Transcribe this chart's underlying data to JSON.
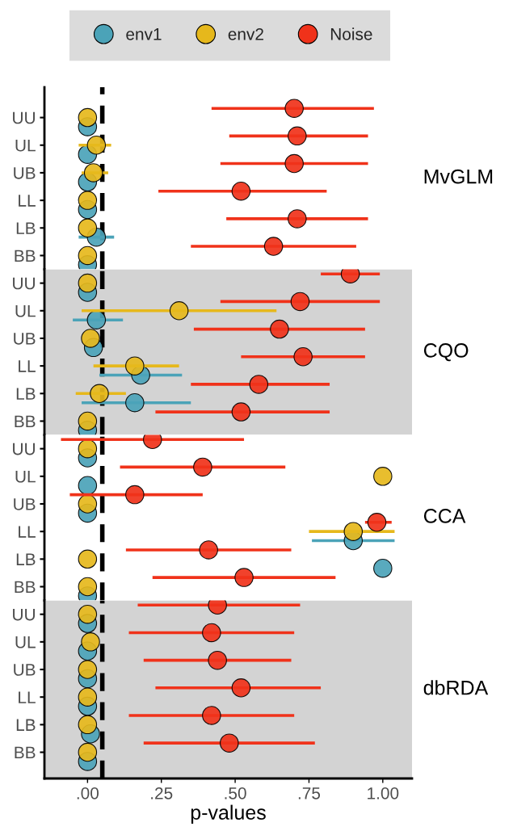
{
  "chart_data": [
    {
      "type": "scatter",
      "orientation": "horizontal",
      "categories": [
        "UU",
        "UL",
        "UB",
        "LL",
        "LB",
        "BB"
      ],
      "xlim": [
        -0.146,
        1.099
      ],
      "tick_labels": "y",
      "legend": "top",
      "annotations": [
        "MvGLM"
      ],
      "ref_lines": [
        {
          "axis": "x",
          "value": 0.05,
          "color": "#000000",
          "line_style": "dashed"
        }
      ],
      "series": [
        {
          "name": "env1",
          "color": "#4ba3b8",
          "values": [
            0.0,
            0.0,
            0.0,
            0.0,
            0.03,
            0.0
          ],
          "errors": [
            null,
            null,
            null,
            null,
            [
              -0.03,
              0.09
            ],
            null
          ]
        },
        {
          "name": "env2",
          "color": "#e6b81c",
          "values": [
            0.0,
            0.03,
            0.02,
            0.0,
            0.0,
            0.0
          ],
          "errors": [
            null,
            [
              -0.03,
              0.08
            ],
            [
              -0.02,
              0.07
            ],
            null,
            null,
            null
          ]
        },
        {
          "name": "Noise",
          "color": "#f0321a",
          "values": [
            0.7,
            0.71,
            0.7,
            0.52,
            0.71,
            0.63
          ],
          "errors": [
            [
              0.42,
              0.97
            ],
            [
              0.48,
              0.95
            ],
            [
              0.45,
              0.95
            ],
            [
              0.24,
              0.81
            ],
            [
              0.47,
              0.95
            ],
            [
              0.35,
              0.91
            ]
          ]
        }
      ]
    },
    {
      "type": "scatter",
      "orientation": "horizontal",
      "categories": [
        "UU",
        "UL",
        "UB",
        "LL",
        "LB",
        "BB"
      ],
      "xlim": [
        -0.146,
        1.099
      ],
      "tick_labels": "y",
      "annotations": [
        "CQO"
      ],
      "bands": [
        {
          "axis": "x",
          "from": -0.146,
          "to": 1.099,
          "color": "#d3d3d3"
        }
      ],
      "ref_lines": [
        {
          "axis": "x",
          "value": 0.05,
          "color": "#000000",
          "line_style": "dashed"
        }
      ],
      "series": [
        {
          "color": "#4ba3b8",
          "values": [
            0.0,
            0.03,
            0.02,
            0.18,
            0.16,
            0.0
          ],
          "errors": [
            null,
            [
              -0.05,
              0.12
            ],
            null,
            [
              0.04,
              0.32
            ],
            [
              -0.02,
              0.35
            ],
            null
          ]
        },
        {
          "color": "#e6b81c",
          "values": [
            0.0,
            0.31,
            0.01,
            0.16,
            0.04,
            0.0
          ],
          "errors": [
            null,
            [
              -0.02,
              0.64
            ],
            null,
            [
              0.02,
              0.31
            ],
            [
              -0.04,
              0.13
            ],
            null
          ]
        },
        {
          "color": "#f0321a",
          "values": [
            0.89,
            0.72,
            0.65,
            0.73,
            0.58,
            0.52
          ],
          "errors": [
            [
              0.79,
              0.99
            ],
            [
              0.45,
              0.99
            ],
            [
              0.36,
              0.94
            ],
            [
              0.52,
              0.94
            ],
            [
              0.35,
              0.82
            ],
            [
              0.23,
              0.82
            ]
          ]
        }
      ]
    },
    {
      "type": "scatter",
      "orientation": "horizontal",
      "categories": [
        "UU",
        "UL",
        "UB",
        "LL",
        "LB",
        "BB"
      ],
      "xlim": [
        -0.146,
        1.099
      ],
      "tick_labels": "y",
      "annotations": [
        "CCA"
      ],
      "ref_lines": [
        {
          "axis": "x",
          "value": 0.05,
          "color": "#000000",
          "line_style": "dashed"
        }
      ],
      "series": [
        {
          "color": "#4ba3b8",
          "values": [
            0.0,
            0.0,
            0.0,
            0.9,
            1.0,
            0.0
          ],
          "errors": [
            null,
            null,
            null,
            [
              0.76,
              1.04
            ],
            null,
            null
          ]
        },
        {
          "color": "#e6b81c",
          "values": [
            0.0,
            1.0,
            0.0,
            0.9,
            0.0,
            0.0
          ],
          "errors": [
            null,
            null,
            null,
            [
              0.75,
              1.04
            ],
            null,
            null
          ]
        },
        {
          "color": "#f0321a",
          "values": [
            0.22,
            0.39,
            0.16,
            0.98,
            0.41,
            0.53
          ],
          "errors": [
            [
              -0.09,
              0.53
            ],
            [
              0.11,
              0.67
            ],
            [
              -0.06,
              0.39
            ],
            [
              0.94,
              1.03
            ],
            [
              0.13,
              0.69
            ],
            [
              0.22,
              0.84
            ]
          ]
        }
      ]
    },
    {
      "type": "scatter",
      "orientation": "horizontal",
      "categories": [
        "UU",
        "UL",
        "UB",
        "LL",
        "LB",
        "BB"
      ],
      "xlim": [
        -0.146,
        1.099
      ],
      "xticks": [
        {
          "value": 0,
          "label": ".00"
        },
        {
          "value": 0.25,
          "label": ".25"
        },
        {
          "value": 0.5,
          "label": ".50"
        },
        {
          "value": 0.75,
          "label": ".75"
        },
        {
          "value": 1,
          "label": "1.00"
        }
      ],
      "xlabel": "p-values",
      "annotations": [
        "dbRDA"
      ],
      "bands": [
        {
          "axis": "x",
          "from": -0.146,
          "to": 1.099,
          "color": "#d3d3d3"
        }
      ],
      "ref_lines": [
        {
          "axis": "x",
          "value": 0.05,
          "color": "#000000",
          "line_style": "dashed"
        }
      ],
      "series": [
        {
          "color": "#4ba3b8",
          "values": [
            0.0,
            0.0,
            0.0,
            0.0,
            0.01,
            0.0
          ]
        },
        {
          "color": "#e6b81c",
          "values": [
            0.0,
            0.01,
            0.0,
            0.0,
            0.0,
            0.0
          ]
        },
        {
          "color": "#f0321a",
          "values": [
            0.44,
            0.42,
            0.44,
            0.52,
            0.42,
            0.48
          ],
          "errors": [
            [
              0.17,
              0.72
            ],
            [
              0.14,
              0.7
            ],
            [
              0.19,
              0.69
            ],
            [
              0.23,
              0.79
            ],
            [
              0.14,
              0.7
            ],
            [
              0.19,
              0.77
            ]
          ]
        }
      ]
    }
  ]
}
